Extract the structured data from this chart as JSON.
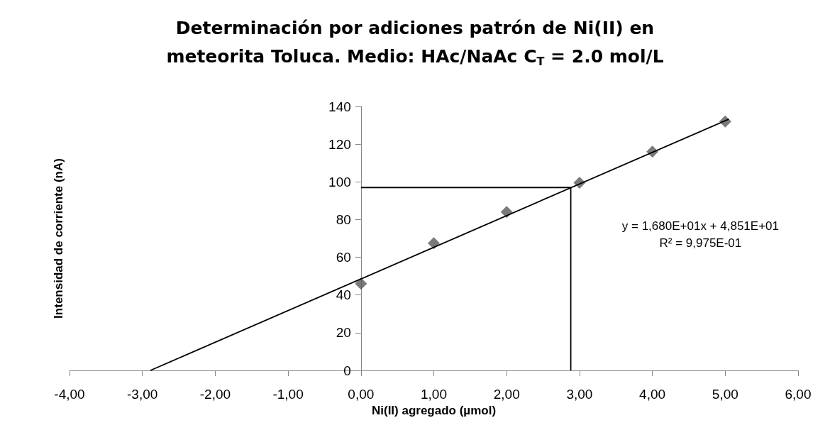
{
  "chart_data": {
    "type": "scatter",
    "title": "Determinación por adiciones patrón de Ni(II) en\nmeteorita Toluca. Medio: HAc/NaAc C$_{T}$ = 2.0 mol/L",
    "xlabel": "Ni(II) agregado (µmol)",
    "ylabel": "Intensidad de corriente (nA)",
    "annotations": [
      "y = 1,680E+01x + 4,851E+01\nR² = 9,975E-01"
    ],
    "xlim": [
      -4,
      6
    ],
    "xticks": [
      {
        "value": -4,
        "label": "-4,00"
      },
      {
        "value": -3,
        "label": "-3,00"
      },
      {
        "value": -2,
        "label": "-2,00"
      },
      {
        "value": -1,
        "label": "-1,00"
      },
      {
        "value": 0,
        "label": "0,00"
      },
      {
        "value": 1,
        "label": "1,00"
      },
      {
        "value": 2,
        "label": "2,00"
      },
      {
        "value": 3,
        "label": "3,00"
      },
      {
        "value": 4,
        "label": "4,00"
      },
      {
        "value": 5,
        "label": "5,00"
      },
      {
        "value": 6,
        "label": "6,00"
      }
    ],
    "ylim": [
      0,
      140
    ],
    "yticks": [
      0,
      20,
      40,
      60,
      80,
      100,
      120,
      140
    ],
    "grid": false,
    "marker": "diamond",
    "series": [
      {
        "color": "#595959",
        "x": [
          0,
          1,
          2,
          3,
          4,
          5
        ],
        "values": [
          46,
          67.5,
          84,
          99.5,
          116,
          132
        ]
      },
      {
        "type": "line",
        "marker": "none",
        "color": "#000000",
        "x": [
          -2.89,
          5.05
        ],
        "values": [
          0,
          133.3
        ]
      },
      {
        "type": "line",
        "marker": "none",
        "color": "#000000",
        "x": [
          0,
          2.88,
          2.88
        ],
        "values": [
          97,
          97,
          0
        ]
      }
    ]
  }
}
